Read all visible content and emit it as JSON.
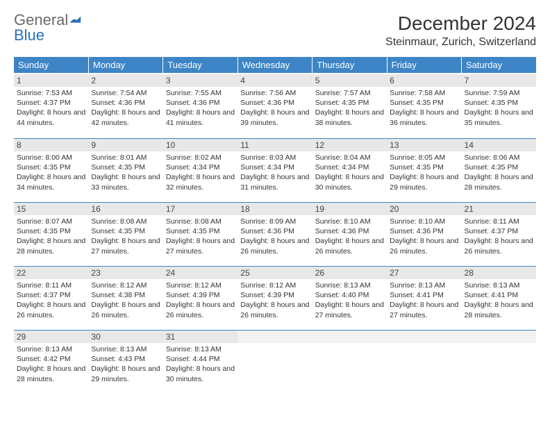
{
  "logo": {
    "text1": "General",
    "text2": "Blue"
  },
  "title": "December 2024",
  "location": "Steinmaur, Zurich, Switzerland",
  "colors": {
    "header_bg": "#3d85c6",
    "header_fg": "#ffffff",
    "daynum_bg": "#e8e8e8",
    "row_divider": "#3d85c6",
    "logo_gray": "#6b6b6b",
    "logo_blue": "#2a6fb3",
    "page_bg": "#ffffff"
  },
  "weekdays": [
    "Sunday",
    "Monday",
    "Tuesday",
    "Wednesday",
    "Thursday",
    "Friday",
    "Saturday"
  ],
  "days": [
    {
      "n": "1",
      "sr": "7:53 AM",
      "ss": "4:37 PM",
      "dl": "8 hours and 44 minutes."
    },
    {
      "n": "2",
      "sr": "7:54 AM",
      "ss": "4:36 PM",
      "dl": "8 hours and 42 minutes."
    },
    {
      "n": "3",
      "sr": "7:55 AM",
      "ss": "4:36 PM",
      "dl": "8 hours and 41 minutes."
    },
    {
      "n": "4",
      "sr": "7:56 AM",
      "ss": "4:36 PM",
      "dl": "8 hours and 39 minutes."
    },
    {
      "n": "5",
      "sr": "7:57 AM",
      "ss": "4:35 PM",
      "dl": "8 hours and 38 minutes."
    },
    {
      "n": "6",
      "sr": "7:58 AM",
      "ss": "4:35 PM",
      "dl": "8 hours and 36 minutes."
    },
    {
      "n": "7",
      "sr": "7:59 AM",
      "ss": "4:35 PM",
      "dl": "8 hours and 35 minutes."
    },
    {
      "n": "8",
      "sr": "8:00 AM",
      "ss": "4:35 PM",
      "dl": "8 hours and 34 minutes."
    },
    {
      "n": "9",
      "sr": "8:01 AM",
      "ss": "4:35 PM",
      "dl": "8 hours and 33 minutes."
    },
    {
      "n": "10",
      "sr": "8:02 AM",
      "ss": "4:34 PM",
      "dl": "8 hours and 32 minutes."
    },
    {
      "n": "11",
      "sr": "8:03 AM",
      "ss": "4:34 PM",
      "dl": "8 hours and 31 minutes."
    },
    {
      "n": "12",
      "sr": "8:04 AM",
      "ss": "4:34 PM",
      "dl": "8 hours and 30 minutes."
    },
    {
      "n": "13",
      "sr": "8:05 AM",
      "ss": "4:35 PM",
      "dl": "8 hours and 29 minutes."
    },
    {
      "n": "14",
      "sr": "8:06 AM",
      "ss": "4:35 PM",
      "dl": "8 hours and 28 minutes."
    },
    {
      "n": "15",
      "sr": "8:07 AM",
      "ss": "4:35 PM",
      "dl": "8 hours and 28 minutes."
    },
    {
      "n": "16",
      "sr": "8:08 AM",
      "ss": "4:35 PM",
      "dl": "8 hours and 27 minutes."
    },
    {
      "n": "17",
      "sr": "8:08 AM",
      "ss": "4:35 PM",
      "dl": "8 hours and 27 minutes."
    },
    {
      "n": "18",
      "sr": "8:09 AM",
      "ss": "4:36 PM",
      "dl": "8 hours and 26 minutes."
    },
    {
      "n": "19",
      "sr": "8:10 AM",
      "ss": "4:36 PM",
      "dl": "8 hours and 26 minutes."
    },
    {
      "n": "20",
      "sr": "8:10 AM",
      "ss": "4:36 PM",
      "dl": "8 hours and 26 minutes."
    },
    {
      "n": "21",
      "sr": "8:11 AM",
      "ss": "4:37 PM",
      "dl": "8 hours and 26 minutes."
    },
    {
      "n": "22",
      "sr": "8:11 AM",
      "ss": "4:37 PM",
      "dl": "8 hours and 26 minutes."
    },
    {
      "n": "23",
      "sr": "8:12 AM",
      "ss": "4:38 PM",
      "dl": "8 hours and 26 minutes."
    },
    {
      "n": "24",
      "sr": "8:12 AM",
      "ss": "4:39 PM",
      "dl": "8 hours and 26 minutes."
    },
    {
      "n": "25",
      "sr": "8:12 AM",
      "ss": "4:39 PM",
      "dl": "8 hours and 26 minutes."
    },
    {
      "n": "26",
      "sr": "8:13 AM",
      "ss": "4:40 PM",
      "dl": "8 hours and 27 minutes."
    },
    {
      "n": "27",
      "sr": "8:13 AM",
      "ss": "4:41 PM",
      "dl": "8 hours and 27 minutes."
    },
    {
      "n": "28",
      "sr": "8:13 AM",
      "ss": "4:41 PM",
      "dl": "8 hours and 28 minutes."
    },
    {
      "n": "29",
      "sr": "8:13 AM",
      "ss": "4:42 PM",
      "dl": "8 hours and 28 minutes."
    },
    {
      "n": "30",
      "sr": "8:13 AM",
      "ss": "4:43 PM",
      "dl": "8 hours and 29 minutes."
    },
    {
      "n": "31",
      "sr": "8:13 AM",
      "ss": "4:44 PM",
      "dl": "8 hours and 30 minutes."
    }
  ],
  "labels": {
    "sunrise": "Sunrise:",
    "sunset": "Sunset:",
    "daylight": "Daylight:"
  },
  "layout": {
    "columns": 7,
    "rows": 5,
    "start_weekday_index": 0
  }
}
